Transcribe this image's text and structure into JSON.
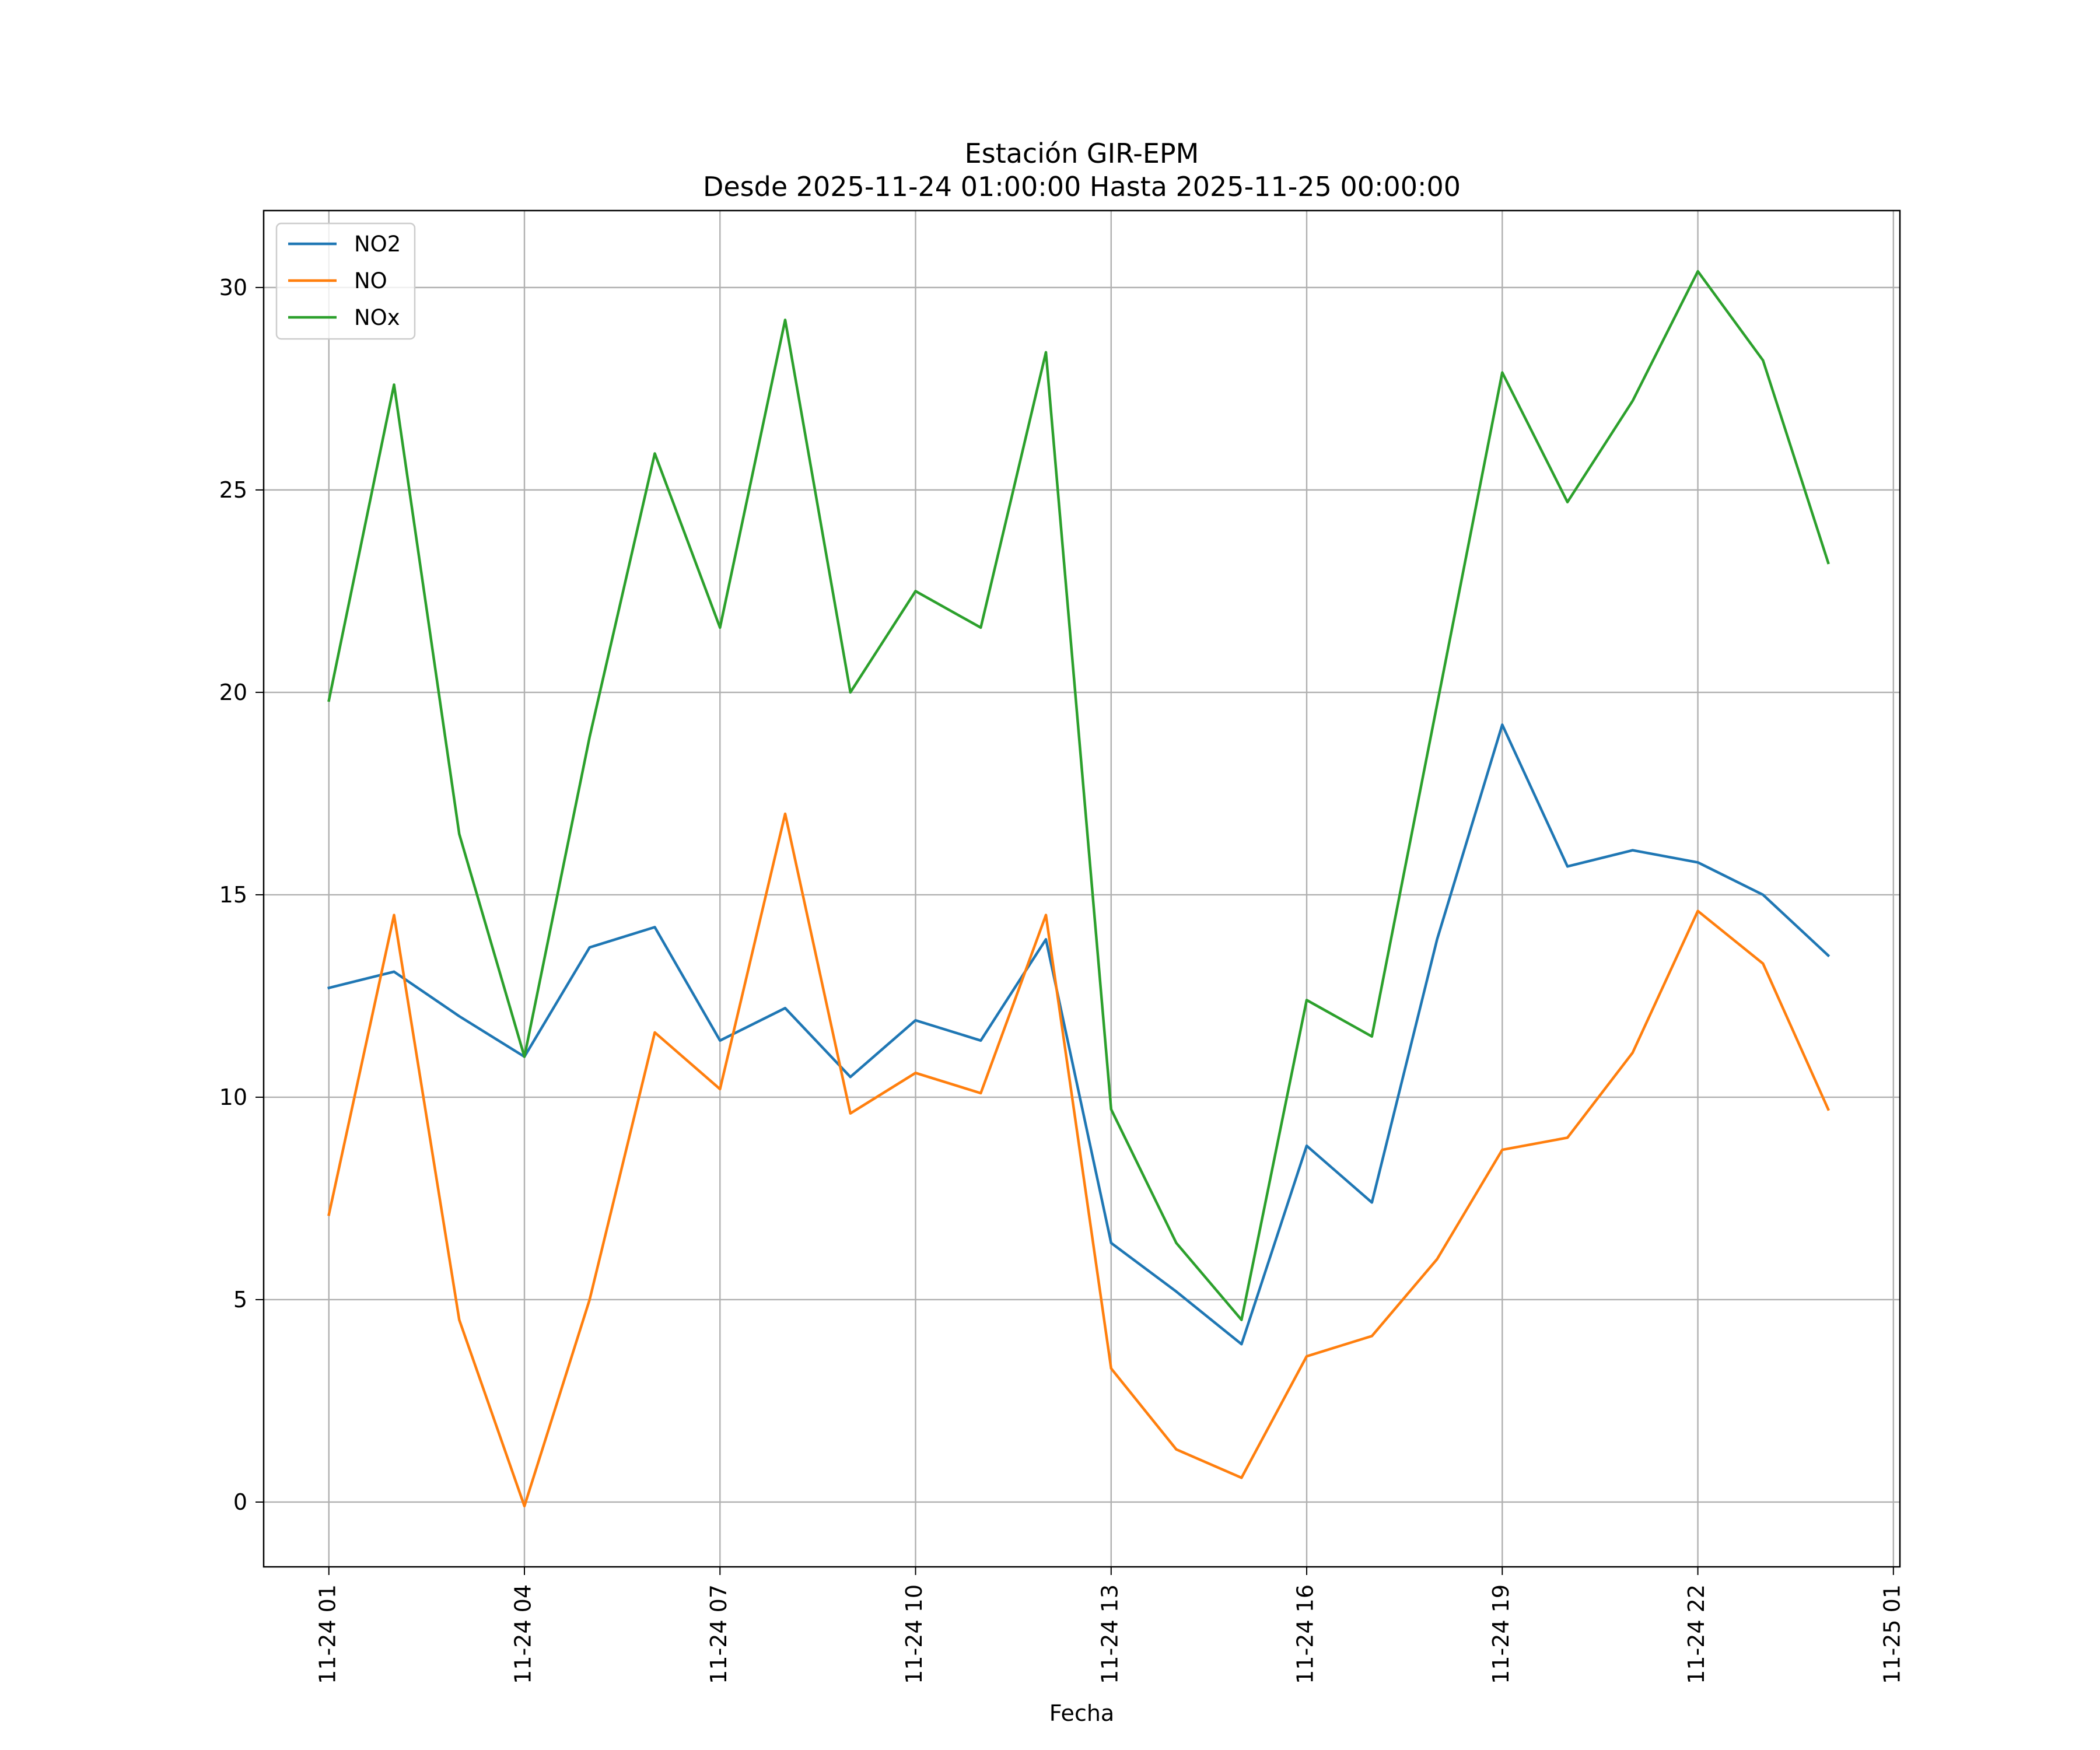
{
  "chart_data": {
    "type": "line",
    "title": "Estación GIR-EPM",
    "subtitle": "Desde 2025-11-24 01:00:00 Hasta 2025-11-25 00:00:00",
    "xlabel": "Fecha",
    "ylabel": "",
    "x": [
      "2025-11-24 01:00",
      "2025-11-24 02:00",
      "2025-11-24 03:00",
      "2025-11-24 04:00",
      "2025-11-24 05:00",
      "2025-11-24 06:00",
      "2025-11-24 07:00",
      "2025-11-24 08:00",
      "2025-11-24 09:00",
      "2025-11-24 10:00",
      "2025-11-24 11:00",
      "2025-11-24 12:00",
      "2025-11-24 13:00",
      "2025-11-24 14:00",
      "2025-11-24 15:00",
      "2025-11-24 16:00",
      "2025-11-24 17:00",
      "2025-11-24 18:00",
      "2025-11-24 19:00",
      "2025-11-24 20:00",
      "2025-11-24 21:00",
      "2025-11-24 22:00",
      "2025-11-24 23:00",
      "2025-11-25 00:00"
    ],
    "x_ticks": [
      "2025-11-24 01:00",
      "2025-11-24 04:00",
      "2025-11-24 07:00",
      "2025-11-24 10:00",
      "2025-11-24 13:00",
      "2025-11-24 16:00",
      "2025-11-24 19:00",
      "2025-11-24 22:00",
      "2025-11-25 01:00"
    ],
    "x_tick_labels": [
      "11-24 01",
      "11-24 04",
      "11-24 07",
      "11-24 10",
      "11-24 13",
      "11-24 16",
      "11-24 19",
      "11-24 22",
      "11-25 01"
    ],
    "xlim": [
      "2025-11-24 00:00",
      "2025-11-25 01:06"
    ],
    "ylim": [
      -1.6,
      31.9
    ],
    "y_ticks": [
      0,
      5,
      10,
      15,
      20,
      25,
      30
    ],
    "y_tick_labels": [
      "0",
      "5",
      "10",
      "15",
      "20",
      "25",
      "30"
    ],
    "grid": true,
    "legend_position": "top-left",
    "series": [
      {
        "name": "NO2",
        "color": "#1f77b4",
        "values": [
          12.7,
          13.1,
          12.0,
          11.0,
          13.7,
          14.2,
          11.4,
          12.2,
          10.5,
          11.9,
          11.4,
          13.9,
          6.4,
          5.2,
          3.9,
          8.8,
          7.4,
          13.9,
          19.2,
          15.7,
          16.1,
          15.8,
          15.0,
          13.5
        ]
      },
      {
        "name": "NO",
        "color": "#ff7f0e",
        "values": [
          7.1,
          14.5,
          4.5,
          -0.1,
          5.0,
          11.6,
          10.2,
          17.0,
          9.6,
          10.6,
          10.1,
          14.5,
          3.3,
          1.3,
          0.6,
          3.6,
          4.1,
          6.0,
          8.7,
          9.0,
          11.1,
          14.6,
          13.3,
          9.7
        ]
      },
      {
        "name": "NOx",
        "color": "#2ca02c",
        "values": [
          19.8,
          27.6,
          16.5,
          11.0,
          18.9,
          25.9,
          21.6,
          29.2,
          20.0,
          22.5,
          21.6,
          28.4,
          9.7,
          6.4,
          4.5,
          12.4,
          11.5,
          19.7,
          27.9,
          24.7,
          27.2,
          30.4,
          28.2,
          23.2
        ]
      }
    ]
  }
}
